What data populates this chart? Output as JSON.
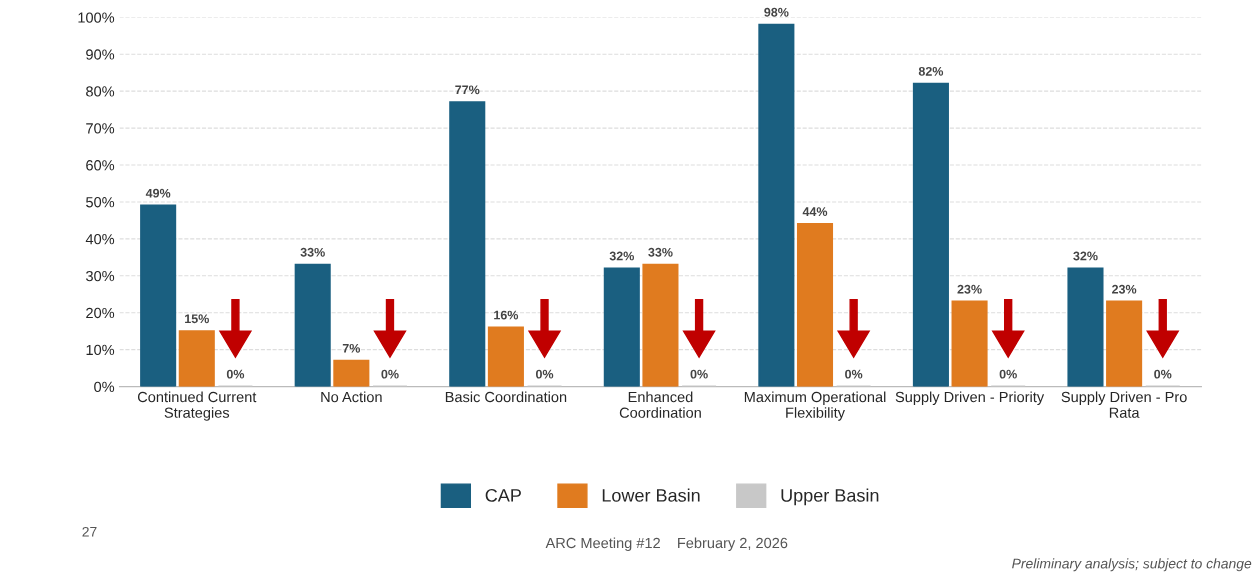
{
  "chart_data": {
    "type": "bar",
    "categories": [
      "Continued Current\nStrategies",
      "No Action",
      "Basic Coordination",
      "Enhanced\nCoordination",
      "Maximum Operational\nFlexibility",
      "Supply Driven - Priority",
      "Supply Driven - Pro\nRata"
    ],
    "series": [
      {
        "name": "CAP",
        "color": "#1a5f80",
        "values": [
          49,
          33,
          77,
          32,
          98,
          82,
          32
        ],
        "value_labels": [
          "49%",
          "33%",
          "77%",
          "32%",
          "98%",
          "82%",
          "32%"
        ]
      },
      {
        "name": "Lower Basin",
        "color": "#e07b1f",
        "values": [
          15,
          7,
          16,
          33,
          44,
          23,
          23
        ],
        "value_labels": [
          "15%",
          "7%",
          "16%",
          "33%",
          "44%",
          "23%",
          "23%"
        ]
      },
      {
        "name": "Upper Basin",
        "color": "#c8c8c8",
        "values": [
          0,
          0,
          0,
          0,
          0,
          0,
          0
        ],
        "value_labels": [
          "0%",
          "0%",
          "0%",
          "0%",
          "0%",
          "0%",
          "0%"
        ]
      }
    ],
    "ylim": [
      0,
      100
    ],
    "yticks": [
      {
        "value": 0,
        "label": "0%"
      },
      {
        "value": 10,
        "label": "10%"
      },
      {
        "value": 20,
        "label": "20%"
      },
      {
        "value": 30,
        "label": "30%"
      },
      {
        "value": 40,
        "label": "40%"
      },
      {
        "value": 50,
        "label": "50%"
      },
      {
        "value": 60,
        "label": "60%"
      },
      {
        "value": 70,
        "label": "70%"
      },
      {
        "value": 80,
        "label": "80%"
      },
      {
        "value": 90,
        "label": "90%"
      },
      {
        "value": 100,
        "label": "100%"
      }
    ],
    "grid": "y",
    "legend": "bottom",
    "annotations": [
      "27",
      "ARC Meeting #12    February 2, 2026",
      "Preliminary analysis; subject to change"
    ]
  }
}
